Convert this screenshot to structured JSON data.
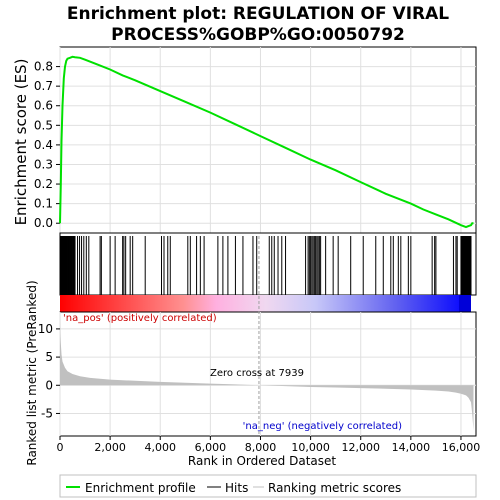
{
  "chart_data": {
    "type": "line",
    "title_line1": "Enrichment plot: REGULATION OF VIRAL",
    "title_line2": "PROCESS%GOBP%GO:0050792",
    "top_panel": {
      "ylabel": "Enrichment score (ES)",
      "ylim": [
        -0.05,
        0.9
      ],
      "yticks": [
        "0.0",
        "0.1",
        "0.2",
        "0.3",
        "0.4",
        "0.5",
        "0.6",
        "0.7",
        "0.8"
      ],
      "ytick_values": [
        0.0,
        0.1,
        0.2,
        0.3,
        0.4,
        0.5,
        0.6,
        0.7,
        0.8
      ],
      "grid": true,
      "es_curve": {
        "x": [
          0,
          30,
          60,
          100,
          150,
          200,
          250,
          300,
          400,
          500,
          600,
          800,
          1000,
          1500,
          2000,
          2500,
          3000,
          4000,
          5000,
          6000,
          7000,
          8000,
          9000,
          10000,
          11000,
          12000,
          13000,
          14000,
          14500,
          15000,
          15500,
          16000,
          16200,
          16300,
          16400,
          16450,
          16500
        ],
        "y": [
          0.0,
          0.2,
          0.42,
          0.6,
          0.74,
          0.8,
          0.83,
          0.84,
          0.845,
          0.85,
          0.848,
          0.845,
          0.835,
          0.81,
          0.785,
          0.755,
          0.73,
          0.675,
          0.62,
          0.565,
          0.505,
          0.445,
          0.385,
          0.325,
          0.27,
          0.21,
          0.15,
          0.1,
          0.07,
          0.045,
          0.02,
          -0.01,
          -0.02,
          -0.015,
          -0.01,
          0.0,
          0.0
        ]
      }
    },
    "hits": {
      "dense_regions": [
        [
          0,
          600
        ],
        [
          16000,
          16400
        ]
      ],
      "positions": [
        700,
        780,
        860,
        950,
        1050,
        1150,
        1600,
        1650,
        2000,
        2200,
        2500,
        2550,
        2620,
        2800,
        2900,
        3400,
        4050,
        4150,
        4300,
        4400,
        5100,
        5200,
        5450,
        5600,
        5750,
        6300,
        6500,
        6700,
        7000,
        7300,
        7700,
        7850,
        8350,
        8450,
        8550,
        8700,
        8850,
        9000,
        9800,
        9900,
        9950,
        10000,
        10050,
        10100,
        10150,
        10200,
        10250,
        10300,
        10350,
        10400,
        10600,
        10900,
        11100,
        11600,
        12100,
        12600,
        12900,
        13200,
        13300,
        13500,
        13600,
        13900,
        14000,
        14850,
        14950,
        15000,
        15700,
        15800,
        15850,
        16000,
        16100,
        16200,
        16300,
        16400
      ]
    },
    "metric_panel": {
      "ylabel": "Ranked list metric (PreRanked)",
      "xlabel": "Rank in Ordered Dataset",
      "ylim": [
        -9,
        13
      ],
      "yticks": [
        "-5",
        "0",
        "5",
        "10"
      ],
      "ytick_values": [
        -5,
        0,
        5,
        10
      ],
      "xlim": [
        0,
        16600
      ],
      "xticks": [
        "0",
        "2,000",
        "4,000",
        "6,000",
        "8,000",
        "10,000",
        "12,000",
        "14,000",
        "16,000"
      ],
      "xtick_values": [
        0,
        2000,
        4000,
        6000,
        8000,
        10000,
        12000,
        14000,
        16000
      ],
      "metric_curve": {
        "x": [
          0,
          10,
          30,
          60,
          100,
          200,
          300,
          500,
          800,
          1200,
          2000,
          3000,
          4000,
          5000,
          6000,
          7000,
          7939,
          9000,
          10000,
          11000,
          12000,
          13000,
          14000,
          15000,
          15500,
          15800,
          16000,
          16200,
          16300,
          16400,
          16450,
          16500
        ],
        "y": [
          12.5,
          9.5,
          7.5,
          5.5,
          4.2,
          3.1,
          2.5,
          2.0,
          1.6,
          1.3,
          1.0,
          0.8,
          0.6,
          0.45,
          0.3,
          0.15,
          0.0,
          -0.15,
          -0.3,
          -0.4,
          -0.5,
          -0.6,
          -0.75,
          -0.95,
          -1.1,
          -1.3,
          -1.5,
          -1.8,
          -2.2,
          -3.0,
          -5.0,
          -8.0
        ]
      },
      "zero_cross": 7939,
      "zero_cross_label": "Zero cross at 7939",
      "pos_label": "'na_pos' (positively correlated)",
      "neg_label": "'na_neg' (negatively correlated)"
    },
    "legend": {
      "placement": "bottom",
      "entries": [
        "Enrichment profile",
        "Hits",
        "Ranking metric scores"
      ]
    },
    "colors": {
      "es_line": "#00e000",
      "hits": "#000000",
      "pos_label": "#cc0000",
      "neg_label": "#0000cc",
      "metric_fill": "#c0c0c0",
      "zero_line": "#a0a0a0",
      "grid": "#e0e0e0"
    }
  }
}
